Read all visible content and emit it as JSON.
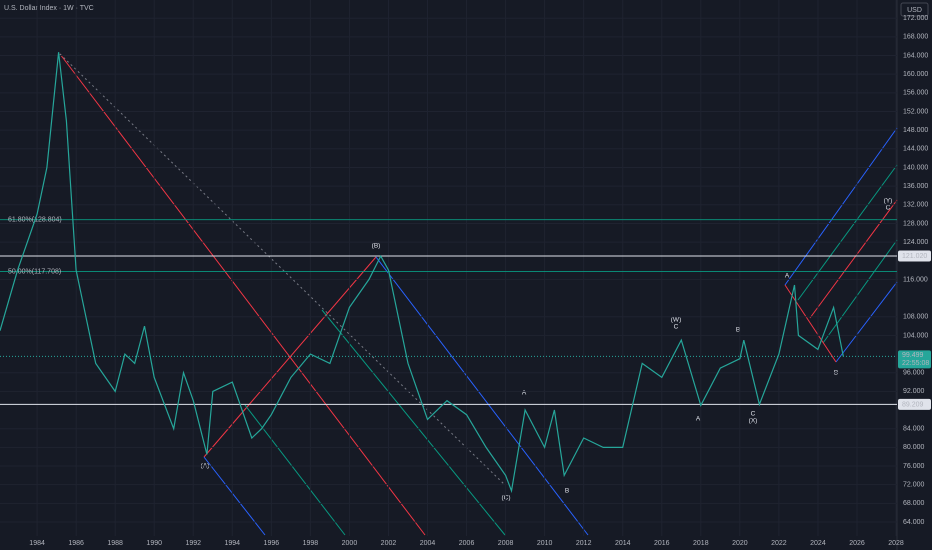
{
  "chart_data": {
    "type": "line",
    "title": "U.S. Dollar Index · 1W · TVC",
    "currency": "USD",
    "color": "#26a69a",
    "x": [
      1982.1,
      1983,
      1984,
      1984.5,
      1985.1,
      1985.5,
      1986,
      1987,
      1988,
      1988.5,
      1989,
      1989.5,
      1990,
      1991,
      1991.5,
      1992,
      1992.7,
      1993,
      1994,
      1995,
      1995.5,
      1996,
      1997,
      1998,
      1999,
      2000,
      2001,
      2001.6,
      2002,
      2003,
      2004,
      2005,
      2006,
      2007,
      2008,
      2008.3,
      2009,
      2010,
      2010.5,
      2011,
      2012,
      2013,
      2014,
      2015,
      2016,
      2017,
      2018,
      2019,
      2020,
      2020.2,
      2021,
      2022,
      2022.8,
      2023,
      2024,
      2024.8,
      2025.3
    ],
    "values": [
      105,
      118,
      130,
      140,
      164.7,
      150,
      118,
      98,
      92,
      100,
      98,
      106,
      95,
      84,
      96,
      90,
      78.5,
      92,
      94,
      82,
      84,
      87,
      95,
      100,
      98,
      110,
      116,
      121.0,
      118,
      98,
      86,
      90,
      87,
      80,
      74,
      70.7,
      88,
      80,
      88,
      74,
      82,
      80,
      80,
      98,
      95,
      103,
      89,
      97,
      99,
      103,
      89.2,
      100,
      114.8,
      104,
      101,
      110,
      99.5
    ],
    "xlim": [
      1982.1,
      2028.05
    ],
    "xticks": [
      1984,
      1986,
      1988,
      1990,
      1992,
      1994,
      1996,
      1998,
      2000,
      2002,
      2004,
      2006,
      2008,
      2010,
      2012,
      2014,
      2016,
      2018,
      2020,
      2022,
      2024,
      2026,
      2028
    ],
    "ylim": [
      61.0,
      175.9
    ],
    "yticks": [
      {
        "value": 64,
        "label": "64.000"
      },
      {
        "value": 68,
        "label": "68.000"
      },
      {
        "value": 72,
        "label": "72.000"
      },
      {
        "value": 76,
        "label": "76.000"
      },
      {
        "value": 80,
        "label": "80.000"
      },
      {
        "value": 84,
        "label": "84.000"
      },
      {
        "value": 92,
        "label": "92.000"
      },
      {
        "value": 96,
        "label": "96.000"
      },
      {
        "value": 104,
        "label": "104.000"
      },
      {
        "value": 108,
        "label": "108.000"
      },
      {
        "value": 116,
        "label": "116.000"
      },
      {
        "value": 124,
        "label": "124.000"
      },
      {
        "value": 128,
        "label": "128.000"
      },
      {
        "value": 132,
        "label": "132.000"
      },
      {
        "value": 136,
        "label": "136.000"
      },
      {
        "value": 140,
        "label": "140.000"
      },
      {
        "value": 144,
        "label": "144.000"
      },
      {
        "value": 148,
        "label": "148.000"
      },
      {
        "value": 152,
        "label": "152.000"
      },
      {
        "value": 156,
        "label": "156.000"
      },
      {
        "value": 160,
        "label": "160.000"
      },
      {
        "value": 164,
        "label": "164.000"
      },
      {
        "value": 168,
        "label": "168.000"
      },
      {
        "value": 172,
        "label": "172.000"
      }
    ],
    "price_lines": [
      {
        "value": 121.02,
        "label": "121.020"
      },
      {
        "value": 89.209,
        "label": "89.209"
      }
    ],
    "last_price": {
      "value": 99.499,
      "label": "99.499",
      "countdown": "22:55:08"
    },
    "fib_levels": [
      {
        "value": 128.804,
        "label": "61.80%(128.804)"
      },
      {
        "value": 117.708,
        "label": "50.00%(117.708)"
      }
    ],
    "wave_labels": [
      "(B)",
      "(A)",
      "(C)",
      "A",
      "B",
      "(W)",
      "C",
      "A",
      "B",
      "C",
      "(X)",
      "A",
      "(Y)",
      "C",
      "B"
    ]
  }
}
